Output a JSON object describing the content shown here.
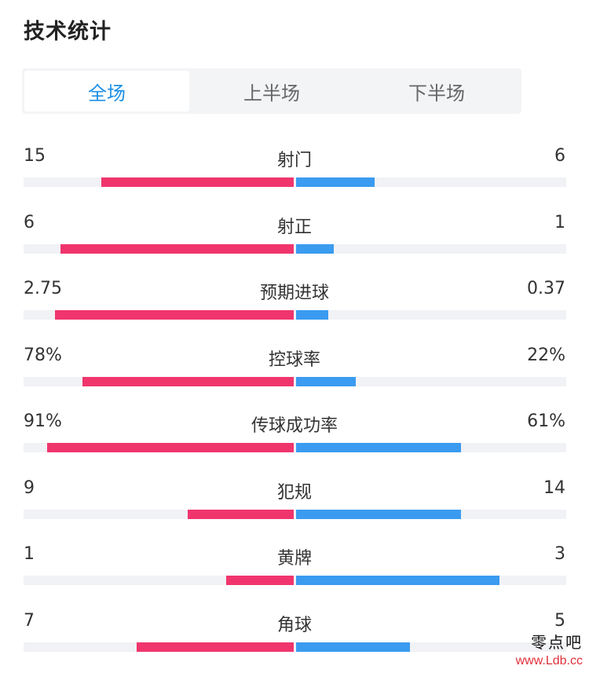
{
  "title": "技术统计",
  "tabs": [
    {
      "label": "全场",
      "active": true
    },
    {
      "label": "上半场",
      "active": false
    },
    {
      "label": "下半场",
      "active": false
    }
  ],
  "colors": {
    "home": "#f0356d",
    "away": "#3a9bf0",
    "active_tab": "#1e90e6",
    "track": "#f1f2f5"
  },
  "stats": [
    {
      "label": "射门",
      "left": "15",
      "right": "6",
      "left_share": 0.71,
      "right_share": 0.29
    },
    {
      "label": "射正",
      "left": "6",
      "right": "1",
      "left_share": 0.86,
      "right_share": 0.14
    },
    {
      "label": "预期进球",
      "left": "2.75",
      "right": "0.37",
      "left_share": 0.88,
      "right_share": 0.12
    },
    {
      "label": "控球率",
      "left": "78%",
      "right": "22%",
      "left_share": 0.78,
      "right_share": 0.22
    },
    {
      "label": "传球成功率",
      "left": "91%",
      "right": "61%",
      "left_share": 0.91,
      "right_share": 0.61
    },
    {
      "label": "犯规",
      "left": "9",
      "right": "14",
      "left_share": 0.39,
      "right_share": 0.61
    },
    {
      "label": "黄牌",
      "left": "1",
      "right": "3",
      "left_share": 0.25,
      "right_share": 0.75
    },
    {
      "label": "角球",
      "left": "7",
      "right": "5",
      "left_share": 0.58,
      "right_share": 0.42
    }
  ],
  "watermark": {
    "name": "零点吧",
    "url": "www.Ldb.cc"
  }
}
